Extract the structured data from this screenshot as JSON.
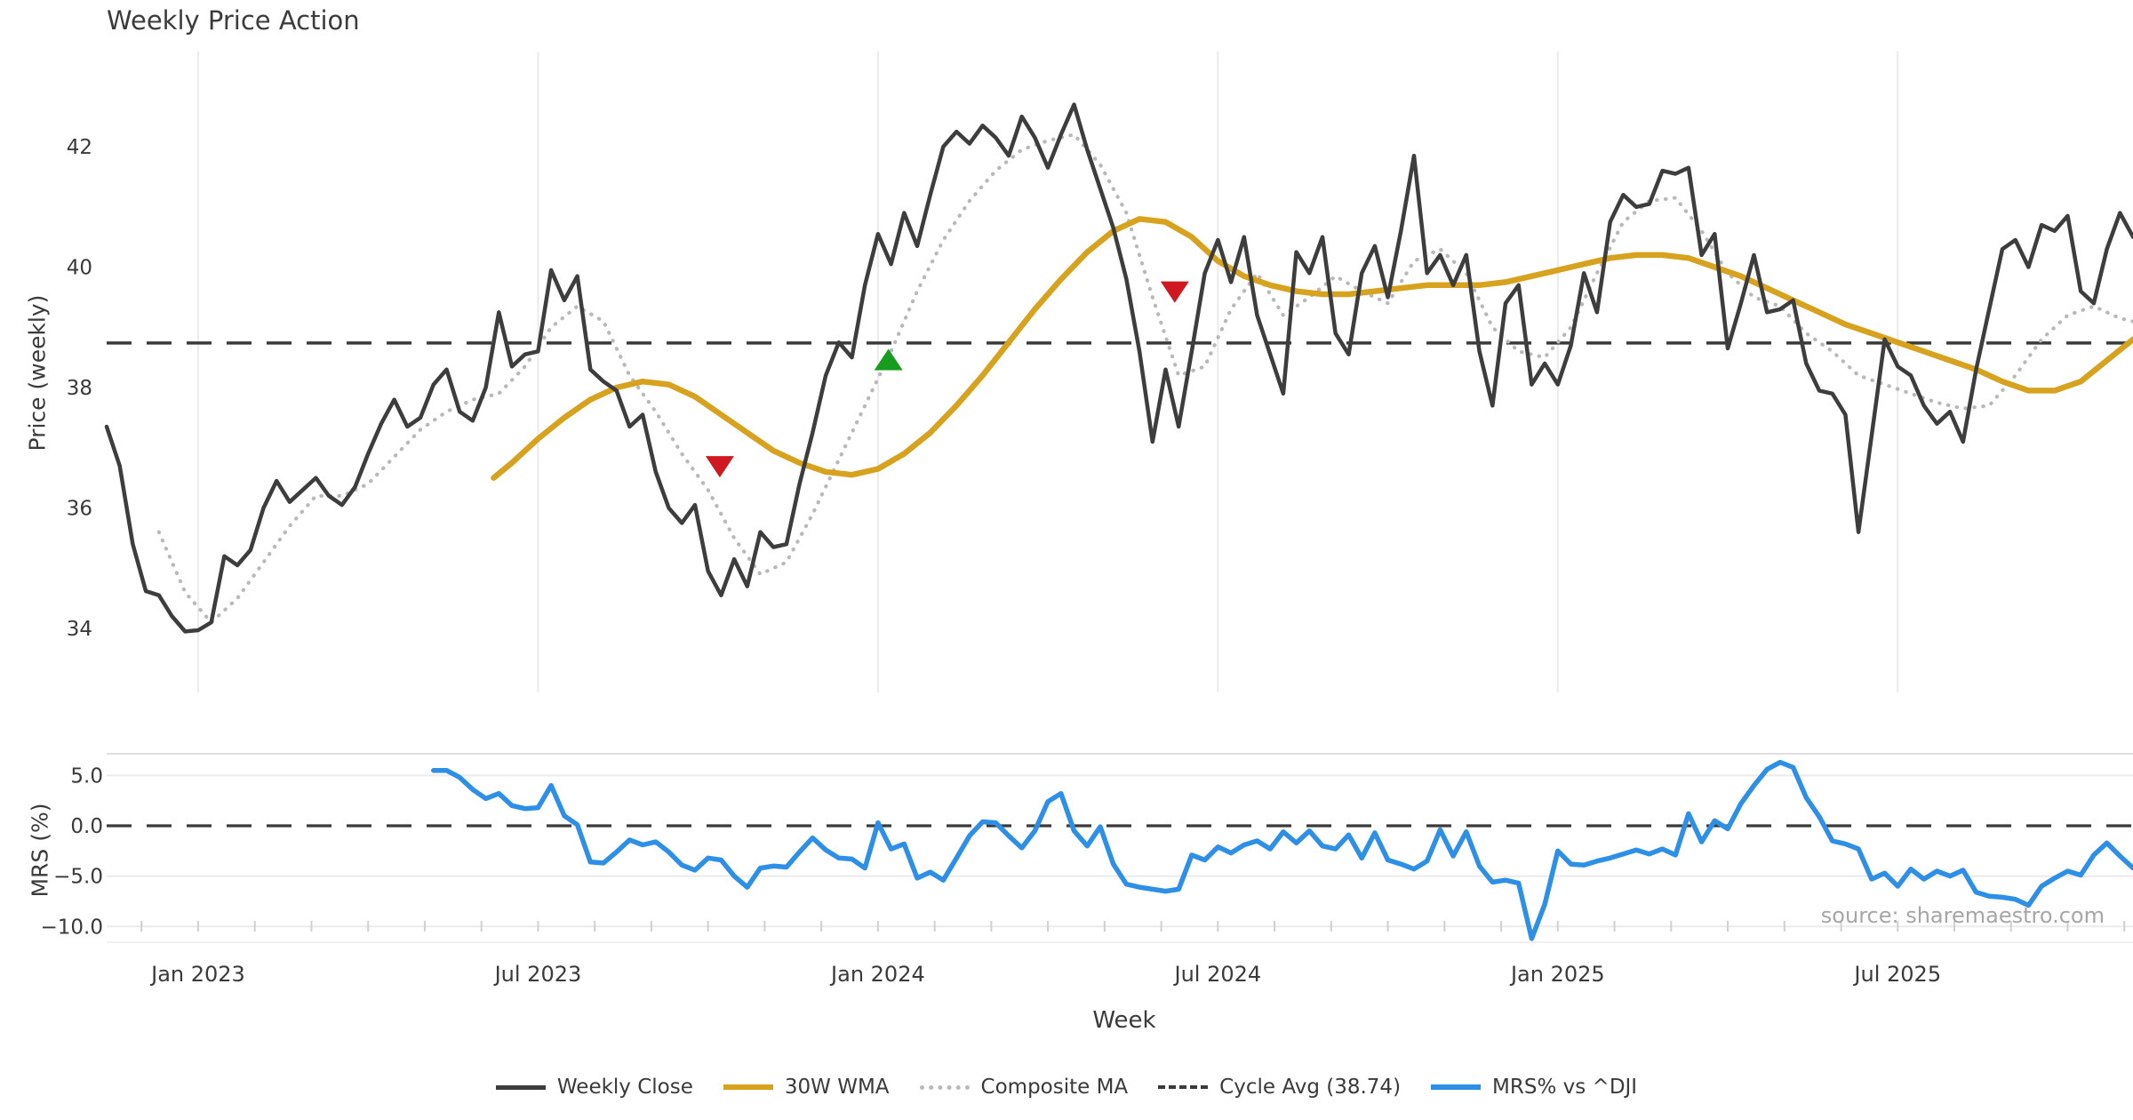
{
  "title": "Weekly Price Action",
  "source_note": "source: sharemaestro.com",
  "colors": {
    "close": "#3d3d3d",
    "wma": "#d7a21e",
    "composite": "#b9b9b9",
    "cycle_avg": "#3a3a3a",
    "mrs": "#2e8fe6",
    "sell_marker": "#cf181f",
    "buy_marker": "#169c1e",
    "grid": "#ebebeb",
    "panel_edge": "#e0e0e0",
    "tick_text": "#3a3a3a",
    "minor_tick": "#d0d0d0"
  },
  "legend": [
    {
      "label": "Weekly Close",
      "swatch": "solid",
      "color": "#3d3d3d",
      "thickness": 5
    },
    {
      "label": "30W WMA",
      "swatch": "solid",
      "color": "#d7a21e",
      "thickness": 6
    },
    {
      "label": "Composite MA",
      "swatch": "dotted",
      "color": "#b9b9b9",
      "thickness": 5
    },
    {
      "label": "Cycle Avg (38.74)",
      "swatch": "dashed",
      "color": "#3a3a3a",
      "thickness": 4
    },
    {
      "label": "MRS% vs ^DJI",
      "swatch": "solid",
      "color": "#2e8fe6",
      "thickness": 6
    }
  ],
  "chart_data": [
    {
      "type": "line",
      "panel": "price",
      "title": "Weekly Price Action",
      "ylabel": "Price (weekly)",
      "xlabel": "Week",
      "x_unit": "week index (0 = first plotted week, ~mid-Nov 2022, ~14.7px/week)",
      "x_ticks": [
        {
          "week": 7,
          "label": "Jan 2023"
        },
        {
          "week": 33,
          "label": "Jul 2023"
        },
        {
          "week": 59,
          "label": "Jan 2024"
        },
        {
          "week": 85,
          "label": "Jul 2024"
        },
        {
          "week": 111,
          "label": "Jan 2025"
        },
        {
          "week": 137,
          "label": "Jul 2025"
        }
      ],
      "y_ticks": [
        {
          "v": 42,
          "label": "42"
        },
        {
          "v": 40,
          "label": "40"
        },
        {
          "v": 38,
          "label": "38"
        },
        {
          "v": 36,
          "label": "36"
        },
        {
          "v": 34,
          "label": "34"
        }
      ],
      "ylim": [
        32.94,
        43.58
      ],
      "grid": "vertical-only",
      "cycle_avg": 38.74,
      "series": [
        {
          "name": "Weekly Close",
          "x_start": 0,
          "x_step": 1,
          "values": [
            37.35,
            36.7,
            35.4,
            34.62,
            34.55,
            34.2,
            33.95,
            33.97,
            34.1,
            35.2,
            35.05,
            35.3,
            36.0,
            36.45,
            36.1,
            36.3,
            36.5,
            36.2,
            36.05,
            36.35,
            36.9,
            37.4,
            37.8,
            37.35,
            37.5,
            38.05,
            38.3,
            37.6,
            37.45,
            38.0,
            39.25,
            38.35,
            38.55,
            38.6,
            39.95,
            39.45,
            39.85,
            38.3,
            38.1,
            37.95,
            37.35,
            37.55,
            36.6,
            36.0,
            35.75,
            36.05,
            34.95,
            34.55,
            35.15,
            34.7,
            35.6,
            35.35,
            35.4,
            36.4,
            37.25,
            38.2,
            38.75,
            38.5,
            39.7,
            40.55,
            40.05,
            40.9,
            40.35,
            41.2,
            42.0,
            42.25,
            42.05,
            42.35,
            42.15,
            41.85,
            42.5,
            42.15,
            41.65,
            42.2,
            42.7,
            41.95,
            41.3,
            40.65,
            39.8,
            38.6,
            37.1,
            38.3,
            37.35,
            38.6,
            39.9,
            40.45,
            39.75,
            40.5,
            39.2,
            38.55,
            37.9,
            40.25,
            39.9,
            40.5,
            38.9,
            38.55,
            39.9,
            40.35,
            39.5,
            40.6,
            41.85,
            39.9,
            40.2,
            39.7,
            40.2,
            38.6,
            37.7,
            39.4,
            39.7,
            38.05,
            38.4,
            38.05,
            38.7,
            39.9,
            39.25,
            40.75,
            41.2,
            41.0,
            41.05,
            41.6,
            41.55,
            41.65,
            40.2,
            40.55,
            38.65,
            39.4,
            40.2,
            39.25,
            39.3,
            39.45,
            38.4,
            37.95,
            37.9,
            37.55,
            35.6,
            37.2,
            38.8,
            38.35,
            38.2,
            37.7,
            37.4,
            37.6,
            37.1,
            38.3,
            39.3,
            40.3,
            40.45,
            40.0,
            40.7,
            40.6,
            40.85,
            39.6,
            39.4,
            40.3,
            40.9,
            40.5
          ]
        },
        {
          "name": "30W WMA",
          "x": [
            29.6,
            31,
            33,
            35,
            37,
            39,
            41,
            43,
            45,
            47,
            49,
            51,
            53,
            55,
            57,
            59,
            61,
            63,
            65,
            67,
            69,
            71,
            73,
            75,
            77,
            79,
            81,
            83,
            85,
            87,
            89,
            91,
            93,
            95,
            97,
            99,
            101,
            103,
            105,
            107,
            109,
            111,
            113,
            115,
            117,
            119,
            121,
            123,
            125,
            127,
            129,
            131,
            133,
            135,
            137,
            139,
            141,
            143,
            145,
            147,
            149,
            151,
            153,
            155
          ],
          "values": [
            36.5,
            36.75,
            37.15,
            37.5,
            37.8,
            38.0,
            38.1,
            38.05,
            37.85,
            37.55,
            37.25,
            36.95,
            36.75,
            36.6,
            36.55,
            36.65,
            36.9,
            37.25,
            37.7,
            38.2,
            38.75,
            39.3,
            39.8,
            40.25,
            40.6,
            40.8,
            40.75,
            40.5,
            40.1,
            39.85,
            39.7,
            39.6,
            39.55,
            39.55,
            39.6,
            39.65,
            39.7,
            39.7,
            39.7,
            39.75,
            39.85,
            39.95,
            40.05,
            40.15,
            40.2,
            40.2,
            40.15,
            40.0,
            39.85,
            39.65,
            39.45,
            39.25,
            39.05,
            38.9,
            38.75,
            38.6,
            38.45,
            38.3,
            38.1,
            37.95,
            37.95,
            38.1,
            38.45,
            38.8
          ]
        },
        {
          "name": "Composite MA",
          "x": [
            4,
            6,
            8,
            10,
            12,
            14,
            16,
            18,
            20,
            22,
            24,
            26,
            28,
            30,
            32,
            34,
            36,
            38,
            40,
            42,
            44,
            46,
            48,
            50,
            52,
            54,
            56,
            58,
            60,
            62,
            64,
            66,
            68,
            70,
            72,
            74,
            76,
            78,
            80,
            82,
            84,
            86,
            88,
            90,
            92,
            94,
            96,
            98,
            100,
            102,
            104,
            106,
            108,
            110,
            112,
            114,
            116,
            118,
            120,
            122,
            124,
            126,
            128,
            130,
            132,
            134,
            136,
            138,
            140,
            142,
            144,
            146,
            148,
            150,
            152,
            154,
            155
          ],
          "values": [
            35.6,
            34.6,
            34.1,
            34.5,
            35.1,
            35.7,
            36.2,
            36.2,
            36.4,
            36.85,
            37.3,
            37.6,
            37.8,
            37.9,
            38.35,
            39.0,
            39.35,
            39.1,
            38.2,
            37.6,
            36.9,
            36.3,
            35.5,
            34.9,
            35.1,
            35.9,
            36.8,
            37.7,
            38.6,
            39.6,
            40.45,
            41.1,
            41.6,
            41.95,
            42.1,
            42.2,
            41.7,
            40.9,
            39.5,
            38.2,
            38.35,
            39.3,
            39.9,
            39.2,
            39.5,
            39.85,
            39.6,
            39.4,
            40.1,
            40.3,
            39.9,
            39.0,
            38.6,
            38.5,
            39.0,
            39.9,
            40.75,
            41.1,
            41.15,
            40.6,
            39.9,
            39.5,
            39.35,
            38.9,
            38.6,
            38.2,
            38.05,
            37.9,
            37.75,
            37.65,
            37.7,
            38.2,
            38.8,
            39.2,
            39.35,
            39.15,
            39.1
          ]
        }
      ],
      "markers": {
        "sell": [
          {
            "week": 46.9,
            "price": 36.7
          },
          {
            "week": 81.7,
            "price": 39.6
          }
        ],
        "buy": [
          {
            "week": 59.8,
            "price": 38.45
          }
        ]
      }
    },
    {
      "type": "line",
      "panel": "mrs",
      "ylabel": "MRS (%)",
      "y_ticks": [
        {
          "v": 5,
          "label": "5.0"
        },
        {
          "v": 0,
          "label": "0.0"
        },
        {
          "v": -5,
          "label": "−5.0"
        },
        {
          "v": -10,
          "label": "−10.0"
        }
      ],
      "ylim": [
        -11.56,
        7.15
      ],
      "grid": "horizontal-only",
      "zero_line_dashed": true,
      "series": [
        {
          "name": "MRS% vs ^DJI",
          "x_start": 25,
          "x_step": 1,
          "values": [
            5.5,
            5.5,
            4.8,
            3.6,
            2.7,
            3.2,
            2.0,
            1.7,
            1.8,
            4.0,
            1.0,
            0.1,
            -3.6,
            -3.7,
            -2.6,
            -1.4,
            -1.9,
            -1.6,
            -2.6,
            -3.9,
            -4.4,
            -3.2,
            -3.4,
            -5.0,
            -6.1,
            -4.2,
            -4.0,
            -4.1,
            -2.6,
            -1.2,
            -2.4,
            -3.2,
            -3.3,
            -4.2,
            0.3,
            -2.3,
            -1.8,
            -5.2,
            -4.6,
            -5.4,
            -3.2,
            -1.0,
            0.4,
            0.3,
            -1.0,
            -2.2,
            -0.5,
            2.4,
            3.2,
            -0.5,
            -2.0,
            -0.1,
            -3.8,
            -5.8,
            -6.1,
            -6.3,
            -6.5,
            -6.3,
            -2.9,
            -3.4,
            -2.1,
            -2.7,
            -1.9,
            -1.5,
            -2.3,
            -0.6,
            -1.7,
            -0.5,
            -2.0,
            -2.3,
            -0.9,
            -3.2,
            -0.7,
            -3.4,
            -3.8,
            -4.3,
            -3.5,
            -0.4,
            -3.0,
            -0.6,
            -4.0,
            -5.6,
            -5.4,
            -5.7,
            -11.2,
            -7.8,
            -2.5,
            -3.8,
            -3.9,
            -3.5,
            -3.2,
            -2.8,
            -2.4,
            -2.8,
            -2.3,
            -2.9,
            1.2,
            -1.6,
            0.5,
            -0.3,
            2.2,
            4.0,
            5.6,
            6.3,
            5.8,
            2.8,
            0.9,
            -1.5,
            -1.8,
            -2.3,
            -5.3,
            -4.7,
            -6.0,
            -4.3,
            -5.3,
            -4.5,
            -5.0,
            -4.4,
            -6.6,
            -7.0,
            -7.1,
            -7.3,
            -7.9,
            -6.0,
            -5.2,
            -4.5,
            -4.9,
            -2.9,
            -1.7,
            -3.0,
            -4.2
          ]
        }
      ]
    }
  ]
}
